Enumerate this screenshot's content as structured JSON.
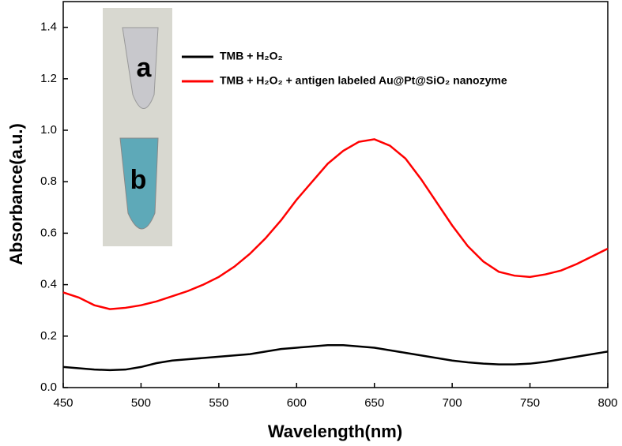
{
  "chart_data": {
    "type": "line",
    "x_label": "Wavelength(nm)",
    "y_label": "Absorbance(a.u.)",
    "x": [
      450,
      460,
      470,
      480,
      490,
      500,
      510,
      520,
      530,
      540,
      550,
      560,
      570,
      580,
      590,
      600,
      610,
      620,
      630,
      640,
      650,
      660,
      670,
      680,
      690,
      700,
      710,
      720,
      730,
      740,
      750,
      760,
      770,
      780,
      790,
      800
    ],
    "series": [
      {
        "name": "TMB + H₂O₂",
        "color": "#000000",
        "values": [
          0.08,
          0.075,
          0.07,
          0.068,
          0.07,
          0.08,
          0.095,
          0.105,
          0.11,
          0.115,
          0.12,
          0.125,
          0.13,
          0.14,
          0.15,
          0.155,
          0.16,
          0.165,
          0.165,
          0.16,
          0.155,
          0.145,
          0.135,
          0.125,
          0.115,
          0.105,
          0.098,
          0.093,
          0.09,
          0.09,
          0.093,
          0.1,
          0.11,
          0.12,
          0.13,
          0.14
        ]
      },
      {
        "name": "TMB + H₂O₂ + antigen labeled Au@Pt@SiO₂ nanozyme",
        "color": "#ff0000",
        "values": [
          0.37,
          0.35,
          0.32,
          0.305,
          0.31,
          0.32,
          0.335,
          0.355,
          0.375,
          0.4,
          0.43,
          0.47,
          0.52,
          0.58,
          0.65,
          0.73,
          0.8,
          0.87,
          0.92,
          0.955,
          0.965,
          0.94,
          0.89,
          0.81,
          0.72,
          0.63,
          0.55,
          0.49,
          0.45,
          0.435,
          0.43,
          0.44,
          0.455,
          0.48,
          0.51,
          0.54
        ]
      }
    ],
    "xlim": [
      450,
      800
    ],
    "xticks": [
      450,
      500,
      550,
      600,
      650,
      700,
      750,
      800
    ],
    "ylim": [
      0,
      1.5
    ],
    "yticks": [
      {
        "value": 0,
        "label": "0.0"
      },
      0.2,
      0.4,
      0.6,
      0.8,
      {
        "value": 1,
        "label": "1.0"
      },
      1.2,
      1.4
    ],
    "inset_labels": [
      "a",
      "b"
    ]
  }
}
